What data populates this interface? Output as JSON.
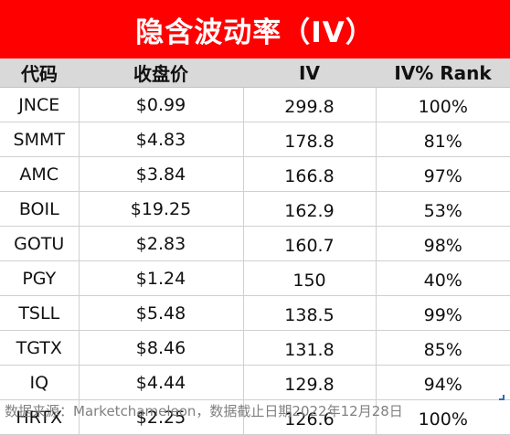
{
  "title": "隐含波动率（IV）",
  "headers": [
    "代码",
    "收盘价",
    "IV",
    "IV% Rank"
  ],
  "rows": [
    {
      "ticker": "JNCE",
      "price": "$0.99",
      "iv": "299.8",
      "rank": "100%"
    },
    {
      "ticker": "SMMT",
      "price": "$4.83",
      "iv": "178.8",
      "rank": "81%"
    },
    {
      "ticker": "AMC",
      "price": "$3.84",
      "iv": "166.8",
      "rank": "97%"
    },
    {
      "ticker": "BOIL",
      "price": "$19.25",
      "iv": "162.9",
      "rank": "53%"
    },
    {
      "ticker": "GOTU",
      "price": "$2.83",
      "iv": "160.7",
      "rank": "98%"
    },
    {
      "ticker": "PGY",
      "price": "$1.24",
      "iv": "150",
      "rank": "40%"
    },
    {
      "ticker": "TSLL",
      "price": "$5.48",
      "iv": "138.5",
      "rank": "99%"
    },
    {
      "ticker": "TGTX",
      "price": "$8.46",
      "iv": "131.8",
      "rank": "85%"
    },
    {
      "ticker": "IQ",
      "price": "$4.44",
      "iv": "129.8",
      "rank": "94%"
    },
    {
      "ticker": "HRTX",
      "price": "$2.25",
      "iv": "126.6",
      "rank": "100%"
    }
  ],
  "footer": "数据来源：Marketchameleon，数据截止日期2022年12月28日",
  "colors": {
    "title_background": "#ff0000",
    "title_text": "#ffffff",
    "header_background": "#d9d9d9",
    "footer_text": "#808080"
  }
}
